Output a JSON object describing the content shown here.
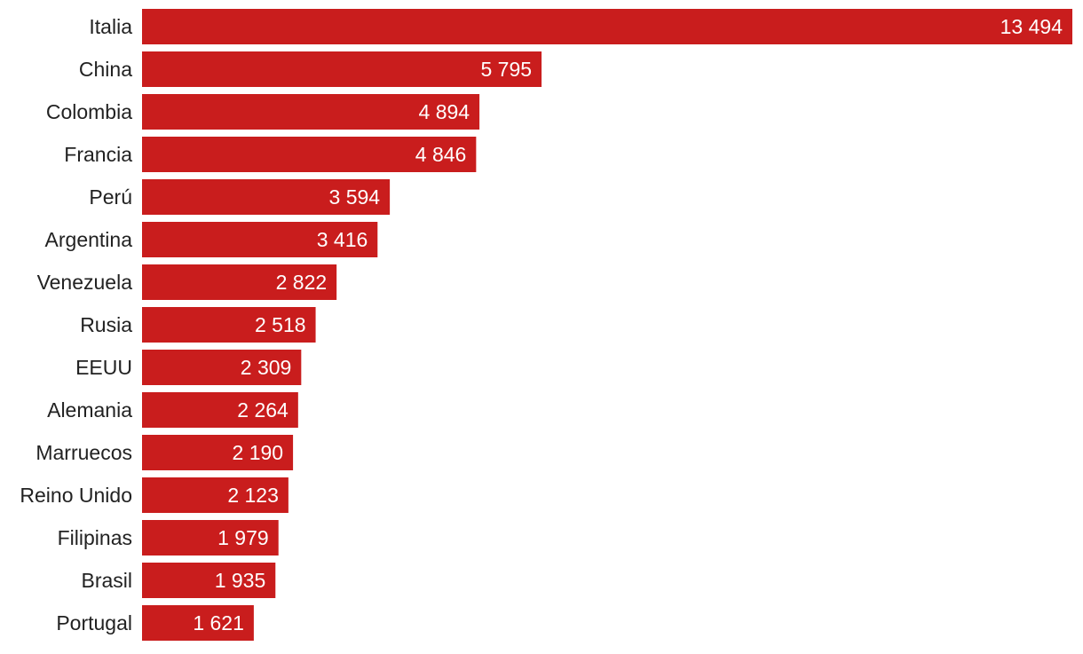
{
  "chart_data": {
    "type": "bar",
    "orientation": "horizontal",
    "categories": [
      "Italia",
      "China",
      "Colombia",
      "Francia",
      "Perú",
      "Argentina",
      "Venezuela",
      "Rusia",
      "EEUU",
      "Alemania",
      "Marruecos",
      "Reino Unido",
      "Filipinas",
      "Brasil",
      "Portugal"
    ],
    "values": [
      13494,
      5795,
      4894,
      4846,
      3594,
      3416,
      2822,
      2518,
      2309,
      2264,
      2190,
      2123,
      1979,
      1935,
      1621
    ],
    "value_labels": [
      "13 494",
      "5 795",
      "4 894",
      "4 846",
      "3 594",
      "3 416",
      "2 822",
      "2 518",
      "2 309",
      "2 264",
      "2 190",
      "2 123",
      "1 979",
      "1 935",
      "1 621"
    ],
    "title": "",
    "xlabel": "",
    "ylabel": "",
    "xlim": [
      0,
      13494
    ],
    "grid": false,
    "legend": "none",
    "bar_color": "#c91d1d",
    "value_label_color": "#ffffff",
    "category_label_color": "#222222"
  }
}
